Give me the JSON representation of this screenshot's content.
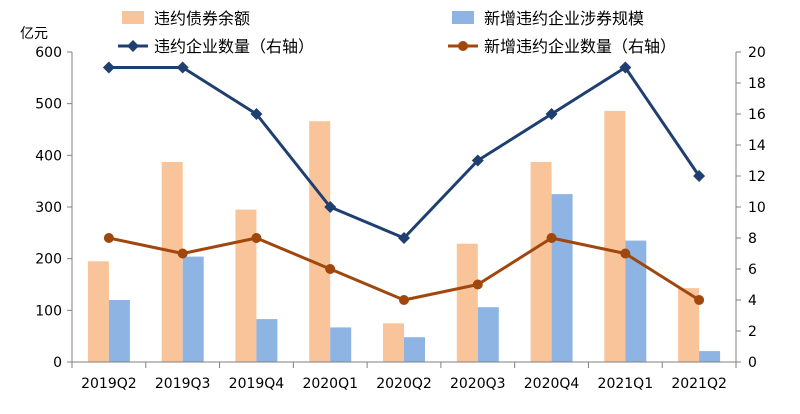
{
  "chart_data": {
    "type": "bar",
    "unit_left": "亿元",
    "categories": [
      "2019Q2",
      "2019Q3",
      "2019Q4",
      "2020Q1",
      "2020Q2",
      "2020Q3",
      "2020Q4",
      "2021Q1",
      "2021Q2"
    ],
    "series": [
      {
        "name": "违约债券余额",
        "type": "bar",
        "axis": "left",
        "color": "#f9c49a",
        "values": [
          195,
          387,
          295,
          466,
          75,
          229,
          387,
          486,
          143
        ]
      },
      {
        "name": "新增违约企业涉券规模",
        "type": "bar",
        "axis": "left",
        "color": "#8db4e2",
        "values": [
          120,
          204,
          83,
          67,
          48,
          106,
          325,
          235,
          21
        ]
      },
      {
        "name": "违约企业数量（右轴）",
        "type": "line",
        "axis": "right",
        "color": "#1f3f70",
        "marker": "diamond",
        "values": [
          19,
          19,
          16,
          10,
          8,
          13,
          16,
          19,
          12
        ]
      },
      {
        "name": "新增违约企业数量（右轴）",
        "type": "line",
        "axis": "right",
        "color": "#a0470e",
        "marker": "circle",
        "values": [
          8,
          7,
          8,
          6,
          4,
          5,
          8,
          7,
          4
        ]
      }
    ],
    "y_left": {
      "min": 0,
      "max": 600,
      "step": 100,
      "ticks": [
        "0",
        "100",
        "200",
        "300",
        "400",
        "500",
        "600"
      ]
    },
    "y_right": {
      "min": 0,
      "max": 20,
      "step": 2,
      "ticks": [
        "0",
        "2",
        "4",
        "6",
        "8",
        "10",
        "12",
        "14",
        "16",
        "18",
        "20"
      ]
    },
    "legend_position": "top",
    "grid": false
  }
}
